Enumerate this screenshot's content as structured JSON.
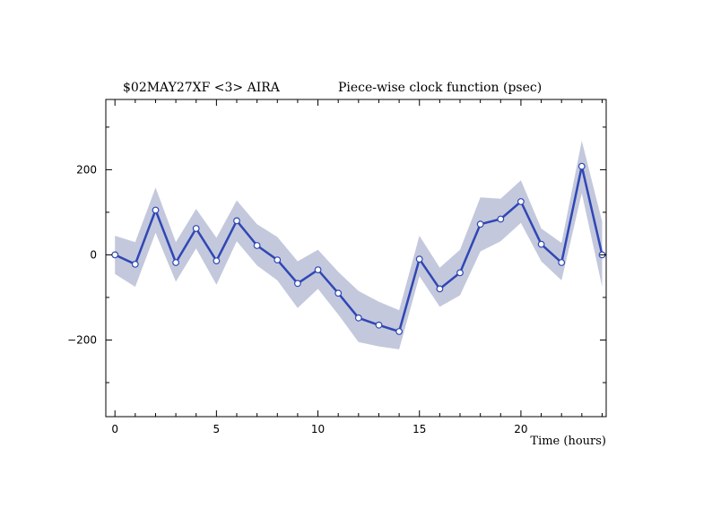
{
  "chart_data": {
    "type": "line",
    "title": {
      "left": "$02MAY27XF <3>  AIRA",
      "right": "Piece-wise clock function (psec)"
    },
    "xlabel": "Time (hours)",
    "ylabel": "",
    "xlim": [
      -0.45,
      24.2
    ],
    "ylim": [
      -380,
      365
    ],
    "x_ticks": [
      0,
      5,
      10,
      15,
      20
    ],
    "y_ticks": [
      -200,
      0,
      200
    ],
    "colors": {
      "line": "#2f47b5",
      "band": "#c3c8dc",
      "marker_fill": "#ffffff",
      "frame": "#000000"
    },
    "series": [
      {
        "x": [
          0,
          1,
          2,
          3,
          4,
          5,
          6,
          7,
          8,
          9,
          10,
          11,
          12,
          13,
          14,
          15,
          16,
          17,
          18,
          19,
          20,
          21,
          22,
          23,
          24
        ],
        "values": [
          0,
          -22,
          105,
          -18,
          62,
          -14,
          80,
          22,
          -12,
          -67,
          -35,
          -90,
          -148,
          -165,
          -180,
          -10,
          -80,
          -42,
          72,
          84,
          125,
          25,
          -18,
          208,
          0
        ],
        "upper": [
          45,
          30,
          158,
          30,
          108,
          40,
          128,
          72,
          42,
          -15,
          12,
          -40,
          -85,
          -110,
          -130,
          45,
          -30,
          12,
          135,
          132,
          175,
          62,
          28,
          268,
          78
        ],
        "lower": [
          -45,
          -75,
          52,
          -63,
          15,
          -70,
          32,
          -25,
          -60,
          -125,
          -80,
          -140,
          -205,
          -215,
          -222,
          -50,
          -122,
          -95,
          8,
          32,
          75,
          -15,
          -60,
          145,
          -75
        ]
      }
    ]
  }
}
